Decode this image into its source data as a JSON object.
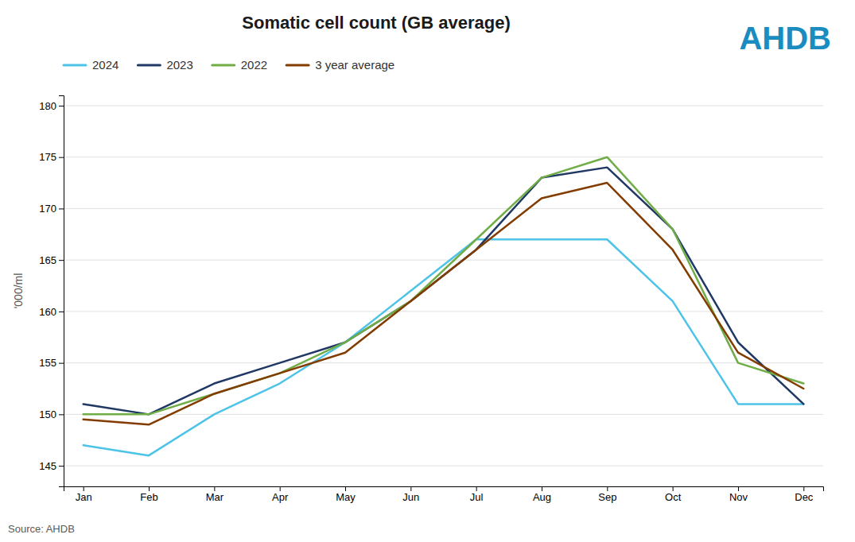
{
  "chart_data": {
    "type": "line",
    "title": "Somatic cell count (GB average)",
    "y_label": "'000/ml",
    "annotations": [
      "Source: AHDB",
      "AHDB"
    ],
    "categories": [
      "Jan",
      "Feb",
      "Mar",
      "Apr",
      "May",
      "Jun",
      "Jul",
      "Aug",
      "Sep",
      "Oct",
      "Nov",
      "Dec"
    ],
    "series": [
      {
        "name": "2024",
        "color": "#4DC3E8",
        "values": [
          147,
          146,
          150,
          153,
          157,
          162,
          167,
          167,
          167,
          161,
          151,
          151
        ]
      },
      {
        "name": "2023",
        "color": "#1F3864",
        "values": [
          151,
          150,
          153,
          155,
          157,
          161,
          166,
          173,
          174,
          168,
          157,
          151
        ]
      },
      {
        "name": "2022",
        "color": "#70AD47",
        "values": [
          150,
          150,
          152,
          154,
          157,
          161,
          167,
          173,
          175,
          168,
          155,
          153
        ]
      },
      {
        "name": "3 year average",
        "color": "#833C00",
        "values": [
          149.5,
          149,
          152,
          154,
          156,
          161,
          166,
          171,
          172.5,
          166,
          156,
          152.5
        ]
      }
    ],
    "ylim": [
      143,
      181
    ],
    "yticks": [
      145,
      150,
      155,
      160,
      165,
      170,
      175,
      180
    ],
    "grid": true,
    "legend": "top"
  }
}
